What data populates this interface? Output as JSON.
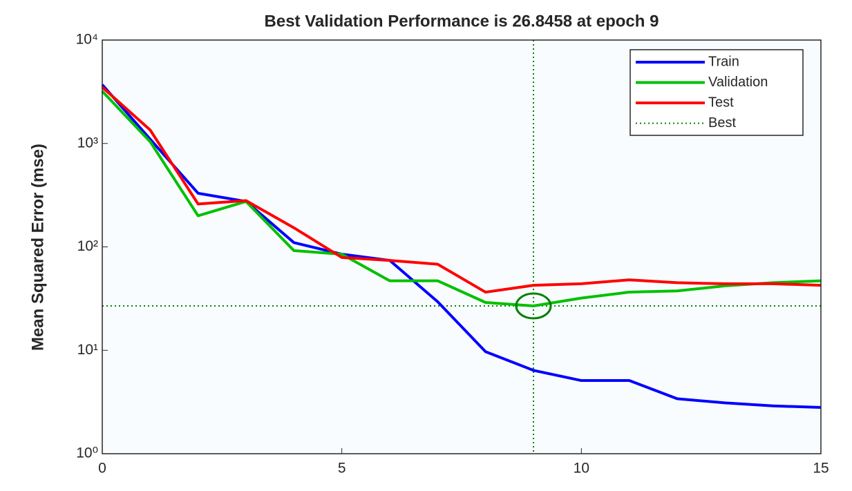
{
  "chart_data": {
    "type": "line",
    "title": "Best Validation Performance is 26.8458 at epoch 9",
    "y_label": "Mean Squared Error  (mse)",
    "x": [
      0,
      1,
      2,
      3,
      4,
      5,
      6,
      7,
      8,
      9,
      10,
      11,
      12,
      13,
      14,
      15
    ],
    "series": [
      {
        "name": "Train",
        "color": "#0000ff",
        "values": [
          3700,
          1100,
          330,
          275,
          110,
          85,
          74,
          29.5,
          9.7,
          6.4,
          5.1,
          5.1,
          3.4,
          3.1,
          2.9,
          2.8
        ]
      },
      {
        "name": "Validation",
        "color": "#00c000",
        "values": [
          3200,
          1040,
          200,
          275,
          92,
          85,
          47,
          47,
          29,
          26.8458,
          32,
          36.5,
          37.5,
          42,
          45,
          47
        ]
      },
      {
        "name": "Test",
        "color": "#ff0000",
        "values": [
          3500,
          1350,
          260,
          280,
          153,
          79,
          74,
          68,
          36.5,
          42.5,
          44,
          48,
          45,
          44,
          44,
          42.5
        ]
      }
    ],
    "best": {
      "name": "Best",
      "color": "#008000",
      "epoch": 9,
      "value": 26.8458
    },
    "xlim": [
      0,
      15
    ],
    "xticks": [
      0,
      5,
      10,
      15
    ],
    "ylim": [
      1,
      10000
    ],
    "yticks": [
      {
        "value": 1,
        "label": "10⁰"
      },
      {
        "value": 10,
        "label": "10¹"
      },
      {
        "value": 100,
        "label": "10²"
      },
      {
        "value": 1000,
        "label": "10³"
      },
      {
        "value": 10000,
        "label": "10⁴"
      }
    ],
    "y_scale": "log",
    "legend": "northeast"
  }
}
